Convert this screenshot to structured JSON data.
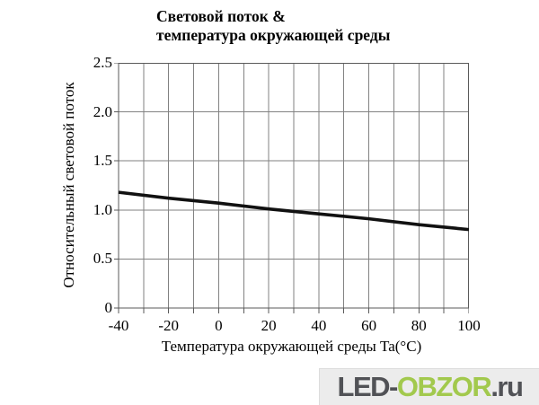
{
  "title": {
    "line1": "Световой поток &",
    "line2": "температура окружающей среды"
  },
  "chart_data": {
    "type": "line",
    "title": "Световой поток & температура окружающей среды",
    "xlabel": "Температура окружающей среды Ta(°C)",
    "ylabel": "Относительный световой поток",
    "xlim": [
      -40,
      100
    ],
    "ylim": [
      0,
      2.5
    ],
    "x_grid_step": 10,
    "y_grid_step": 0.5,
    "grid": true,
    "legend": "none",
    "x_tick_labels": [
      "-40",
      "-20",
      "0",
      "20",
      "40",
      "60",
      "80",
      "100"
    ],
    "y_tick_labels": [
      "0",
      "0.5",
      "1.0",
      "1.5",
      "2.0",
      "2.5"
    ],
    "series": [
      {
        "name": "Относительный световой поток",
        "x": [
          -40,
          -20,
          0,
          20,
          40,
          60,
          80,
          100
        ],
        "y": [
          1.18,
          1.12,
          1.07,
          1.01,
          0.96,
          0.91,
          0.85,
          0.8
        ]
      }
    ]
  },
  "watermark": {
    "part1": "LED-",
    "part2": "OBZOR",
    "part3": ".ru",
    "text_color": "#515256",
    "accent_color": "#a2c94d",
    "bg_color": "#ececec"
  },
  "colors": {
    "background": "#ffffff",
    "grid": "#828282",
    "axis": "#5a5a5a",
    "line": "#111111",
    "text": "#000000"
  }
}
